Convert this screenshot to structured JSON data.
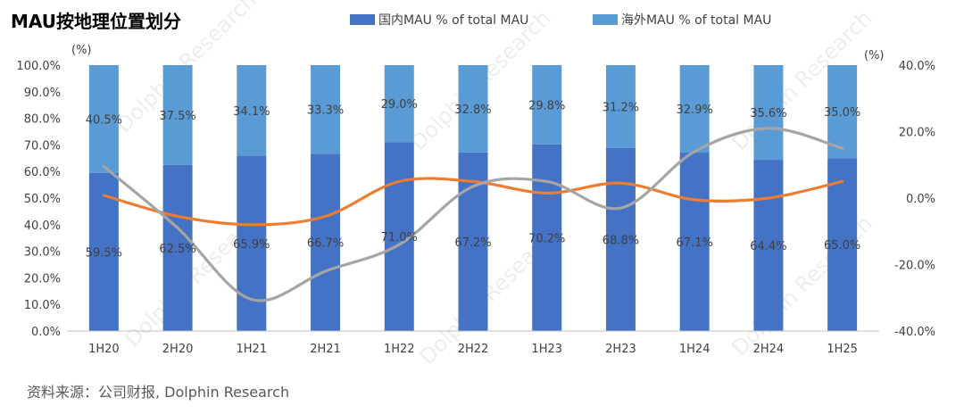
{
  "title": "MAU按地理位置划分",
  "source": "资料来源：公司财报, Dolphin Research",
  "watermark": "Dolphin Research",
  "colors": {
    "domestic": "#4472C4",
    "overseas": "#5B9BD5",
    "orange": "#ED7D31",
    "gray": "#A5A5A5"
  },
  "chart_data": {
    "type": "bar",
    "stacked": true,
    "categories": [
      "1H20",
      "2H20",
      "1H21",
      "2H21",
      "1H22",
      "2H22",
      "1H23",
      "2H23",
      "1H24",
      "2H24",
      "1H25"
    ],
    "series": [
      {
        "name": "国内MAU % of total MAU",
        "values": [
          59.5,
          62.5,
          65.9,
          66.7,
          71.0,
          67.2,
          70.2,
          68.8,
          67.1,
          64.4,
          65.0
        ]
      },
      {
        "name": "海外MAU % of total MAU",
        "values": [
          40.5,
          37.5,
          34.1,
          33.3,
          29.0,
          32.8,
          29.8,
          31.2,
          32.9,
          35.6,
          35.0
        ]
      }
    ],
    "data_labels": {
      "domestic": [
        "59.5%",
        "62.5%",
        "65.9%",
        "66.7%",
        "71.0%",
        "67.2%",
        "70.2%",
        "68.8%",
        "67.1%",
        "64.4%",
        "65.0%"
      ],
      "overseas": [
        "40.5%",
        "37.5%",
        "34.1%",
        "33.3%",
        "29.0%",
        "32.8%",
        "29.8%",
        "31.2%",
        "32.9%",
        "35.6%",
        "35.0%"
      ]
    },
    "left_axis": {
      "unit": "(%)",
      "ylim": [
        0,
        100
      ],
      "ticks": [
        "0.0%",
        "10.0%",
        "20.0%",
        "30.0%",
        "40.0%",
        "50.0%",
        "60.0%",
        "70.0%",
        "80.0%",
        "90.0%",
        "100.0%"
      ]
    },
    "right_axis": {
      "unit": "(%)",
      "ylim": [
        -40,
        40
      ],
      "ticks": [
        "-40.0%",
        "-20.0%",
        "0.0%",
        "20.0%",
        "40.0%"
      ]
    },
    "lines": [
      {
        "axis": "right",
        "color": "orange",
        "values": [
          0.8,
          -5.5,
          -8,
          -5.5,
          5,
          5,
          1.5,
          4.5,
          -0.5,
          0,
          5
        ]
      },
      {
        "axis": "right",
        "color": "gray",
        "values": [
          9.5,
          -9,
          -30.5,
          -22,
          -14,
          3.5,
          5,
          -3,
          14,
          21,
          15
        ]
      }
    ],
    "legend_position": "top-center",
    "grid": false
  }
}
